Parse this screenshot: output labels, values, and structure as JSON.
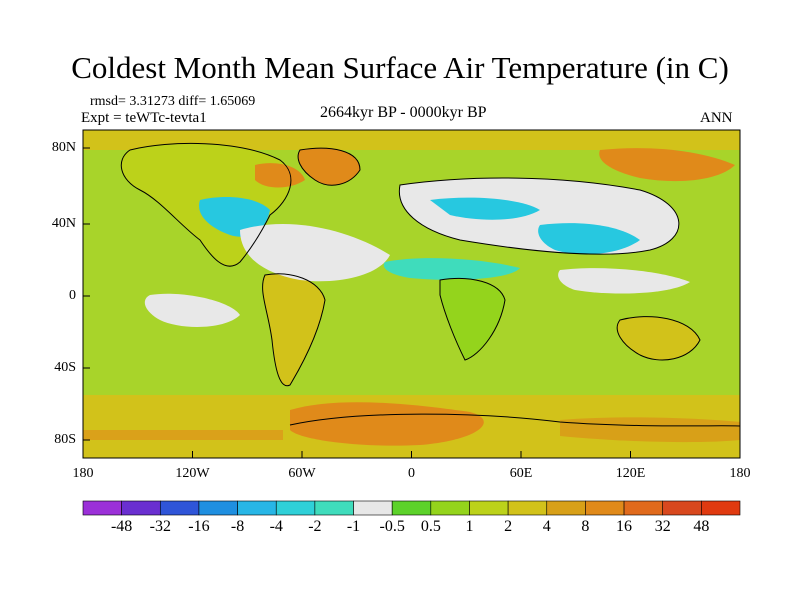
{
  "title": "Coldest Month Mean Surface Air Temperature (in C)",
  "stats_label": "rmsd= 3.31273 diff= 1.65069",
  "experiment_label": "Expt = teWTc-tevta1",
  "period_label": "2664kyr BP - 0000kyr BP",
  "season_label": "ANN",
  "lat_ticks": [
    "80N",
    "40N",
    "0",
    "40S",
    "80S"
  ],
  "lon_ticks": [
    "180",
    "120W",
    "60W",
    "0",
    "60E",
    "120E",
    "180"
  ],
  "colorbar": {
    "labels": [
      "-48",
      "-32",
      "-16",
      "-8",
      "-4",
      "-2",
      "-1",
      "-0.5",
      "0.5",
      "1",
      "2",
      "4",
      "8",
      "16",
      "32",
      "48"
    ],
    "colors": [
      "#9b30d8",
      "#6a2fd0",
      "#2f55d8",
      "#1f8fe0",
      "#27b6e6",
      "#2fd0d8",
      "#3fdcbc",
      "#e8e8e8",
      "#5cd22a",
      "#94d41c",
      "#bcd21a",
      "#d2c21a",
      "#d8a018",
      "#e08a1a",
      "#e06a1c",
      "#d8481e",
      "#e03a10"
    ]
  },
  "colors": {
    "ocean_base": "#a8d42a",
    "land_green": "#5cd22a",
    "land_yellow": "#d2c21a",
    "warm_orange": "#e08a1a",
    "cool_cyan": "#27c8e0",
    "neutral_grey": "#e8e8e8"
  }
}
